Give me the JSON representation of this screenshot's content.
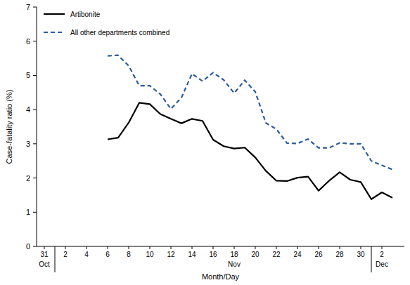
{
  "chart_data": {
    "type": "line",
    "x_label": "Month/Day",
    "y_label": "Case-fatality ratio (%)",
    "annotations": [
      "Oct",
      "Nov",
      "Dec"
    ],
    "categories": [
      "31",
      null,
      "2",
      null,
      "4",
      null,
      "6",
      null,
      "8",
      null,
      "10",
      null,
      "12",
      null,
      "14",
      null,
      "16",
      null,
      "18",
      null,
      "20",
      null,
      "22",
      null,
      "24",
      null,
      "26",
      null,
      "28",
      null,
      "30",
      null,
      "2",
      null
    ],
    "series": [
      {
        "name": "Artibonite",
        "color": "#000000",
        "line_style": "solid",
        "values": [
          null,
          null,
          null,
          null,
          null,
          null,
          3.13,
          3.18,
          3.62,
          4.2,
          4.16,
          3.87,
          3.73,
          3.6,
          3.73,
          3.67,
          3.12,
          2.93,
          2.86,
          2.89,
          2.6,
          2.21,
          1.92,
          1.91,
          2.01,
          2.04,
          1.63,
          1.92,
          2.17,
          1.95,
          1.88,
          1.38,
          1.58,
          1.42
        ]
      },
      {
        "name": "All other departments combined",
        "color": "#2a5d9f",
        "line_style": "dashed",
        "values": [
          null,
          null,
          null,
          null,
          null,
          null,
          5.57,
          5.59,
          5.28,
          4.7,
          4.7,
          4.45,
          4.02,
          4.35,
          5.05,
          4.83,
          5.08,
          4.87,
          4.48,
          4.86,
          4.52,
          3.61,
          3.43,
          3.02,
          3.01,
          3.14,
          2.88,
          2.88,
          3.03,
          3.0,
          3.0,
          2.5,
          2.37,
          2.25
        ]
      }
    ],
    "ylim": [
      0,
      7
    ],
    "yticks": [
      0,
      1,
      2,
      3,
      4,
      5,
      6,
      7
    ],
    "grid": false,
    "legend": "upper left"
  }
}
